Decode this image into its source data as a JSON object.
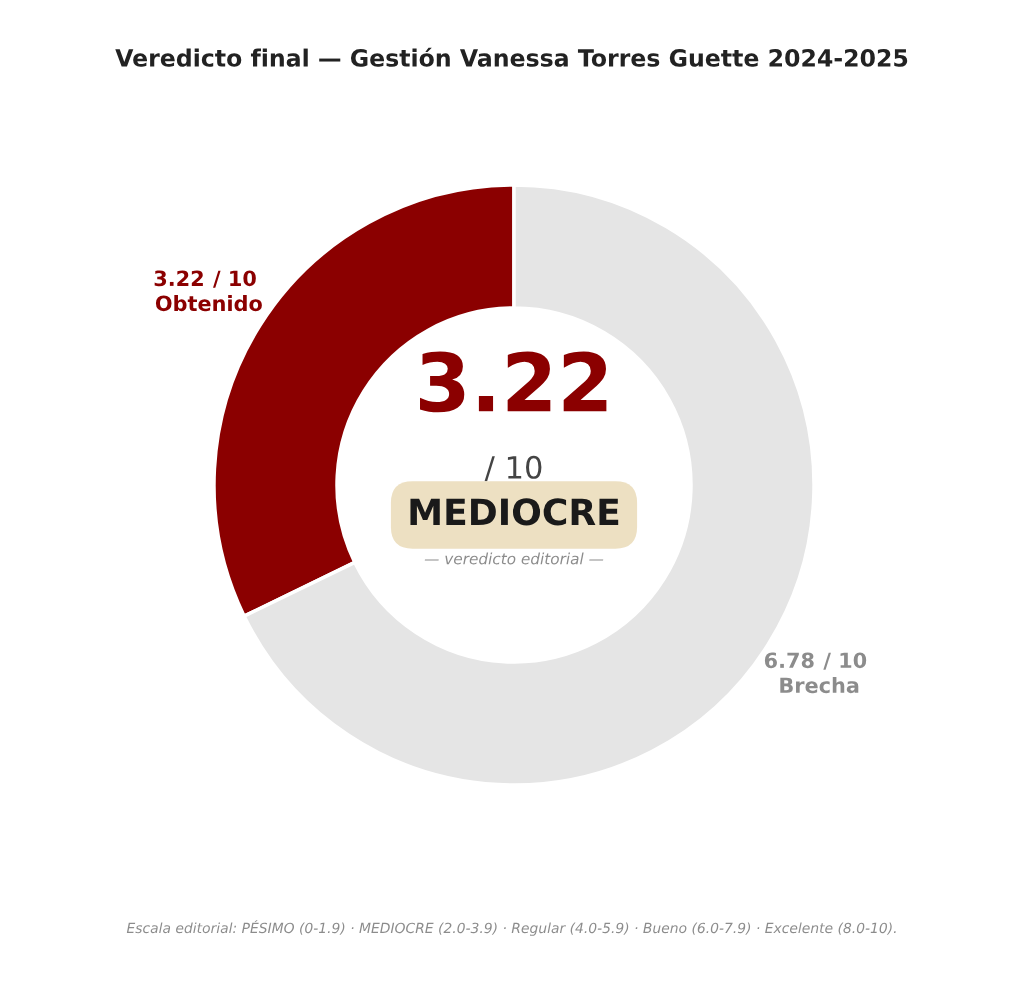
{
  "chart_data": {
    "type": "donut",
    "title": "Veredicto final — Gestión Vanessa Torres Guette 2024-2025",
    "categories": [
      "Obtenido",
      "Brecha"
    ],
    "values": [
      3.22,
      6.78
    ],
    "colors": [
      "#8b0000",
      "#e5e5e5"
    ],
    "data_labels": true,
    "annotations": [
      "3.22",
      "/ 10",
      "MEDIOCRE",
      "— veredicto editorial —",
      "/ 10",
      "/ 10",
      "Escala editorial: PÉSIMO (0-1.9) · MEDIOCRE (2.0-3.9) · Regular (4.0-5.9) · Bueno (6.0-7.9) · Excelente (8.0-10)."
    ],
    "legend": false
  }
}
